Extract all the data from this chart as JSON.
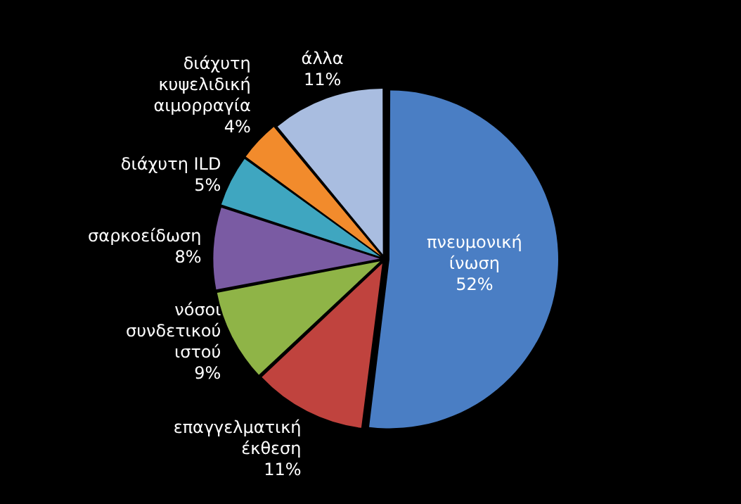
{
  "chart_data": {
    "type": "pie",
    "categories": [
      "πνευμονική ίνωση",
      "επαγγελματική έκθεση",
      "νόσοι συνδετικού ιστού",
      "σαρκοείδωση",
      "διάχυτη ILD",
      "διάχυτη κυψελιδική αιμορραγία",
      "άλλα"
    ],
    "values": [
      52,
      11,
      9,
      8,
      5,
      4,
      11
    ],
    "colors": [
      "#4a7ec4",
      "#c0433e",
      "#8fb447",
      "#7a5ba3",
      "#3fa6c0",
      "#f28b2c",
      "#a9bde0"
    ],
    "value_labels": [
      "52%",
      "11%",
      "9%",
      "8%",
      "5%",
      "4%",
      "11%"
    ],
    "legend": false
  }
}
